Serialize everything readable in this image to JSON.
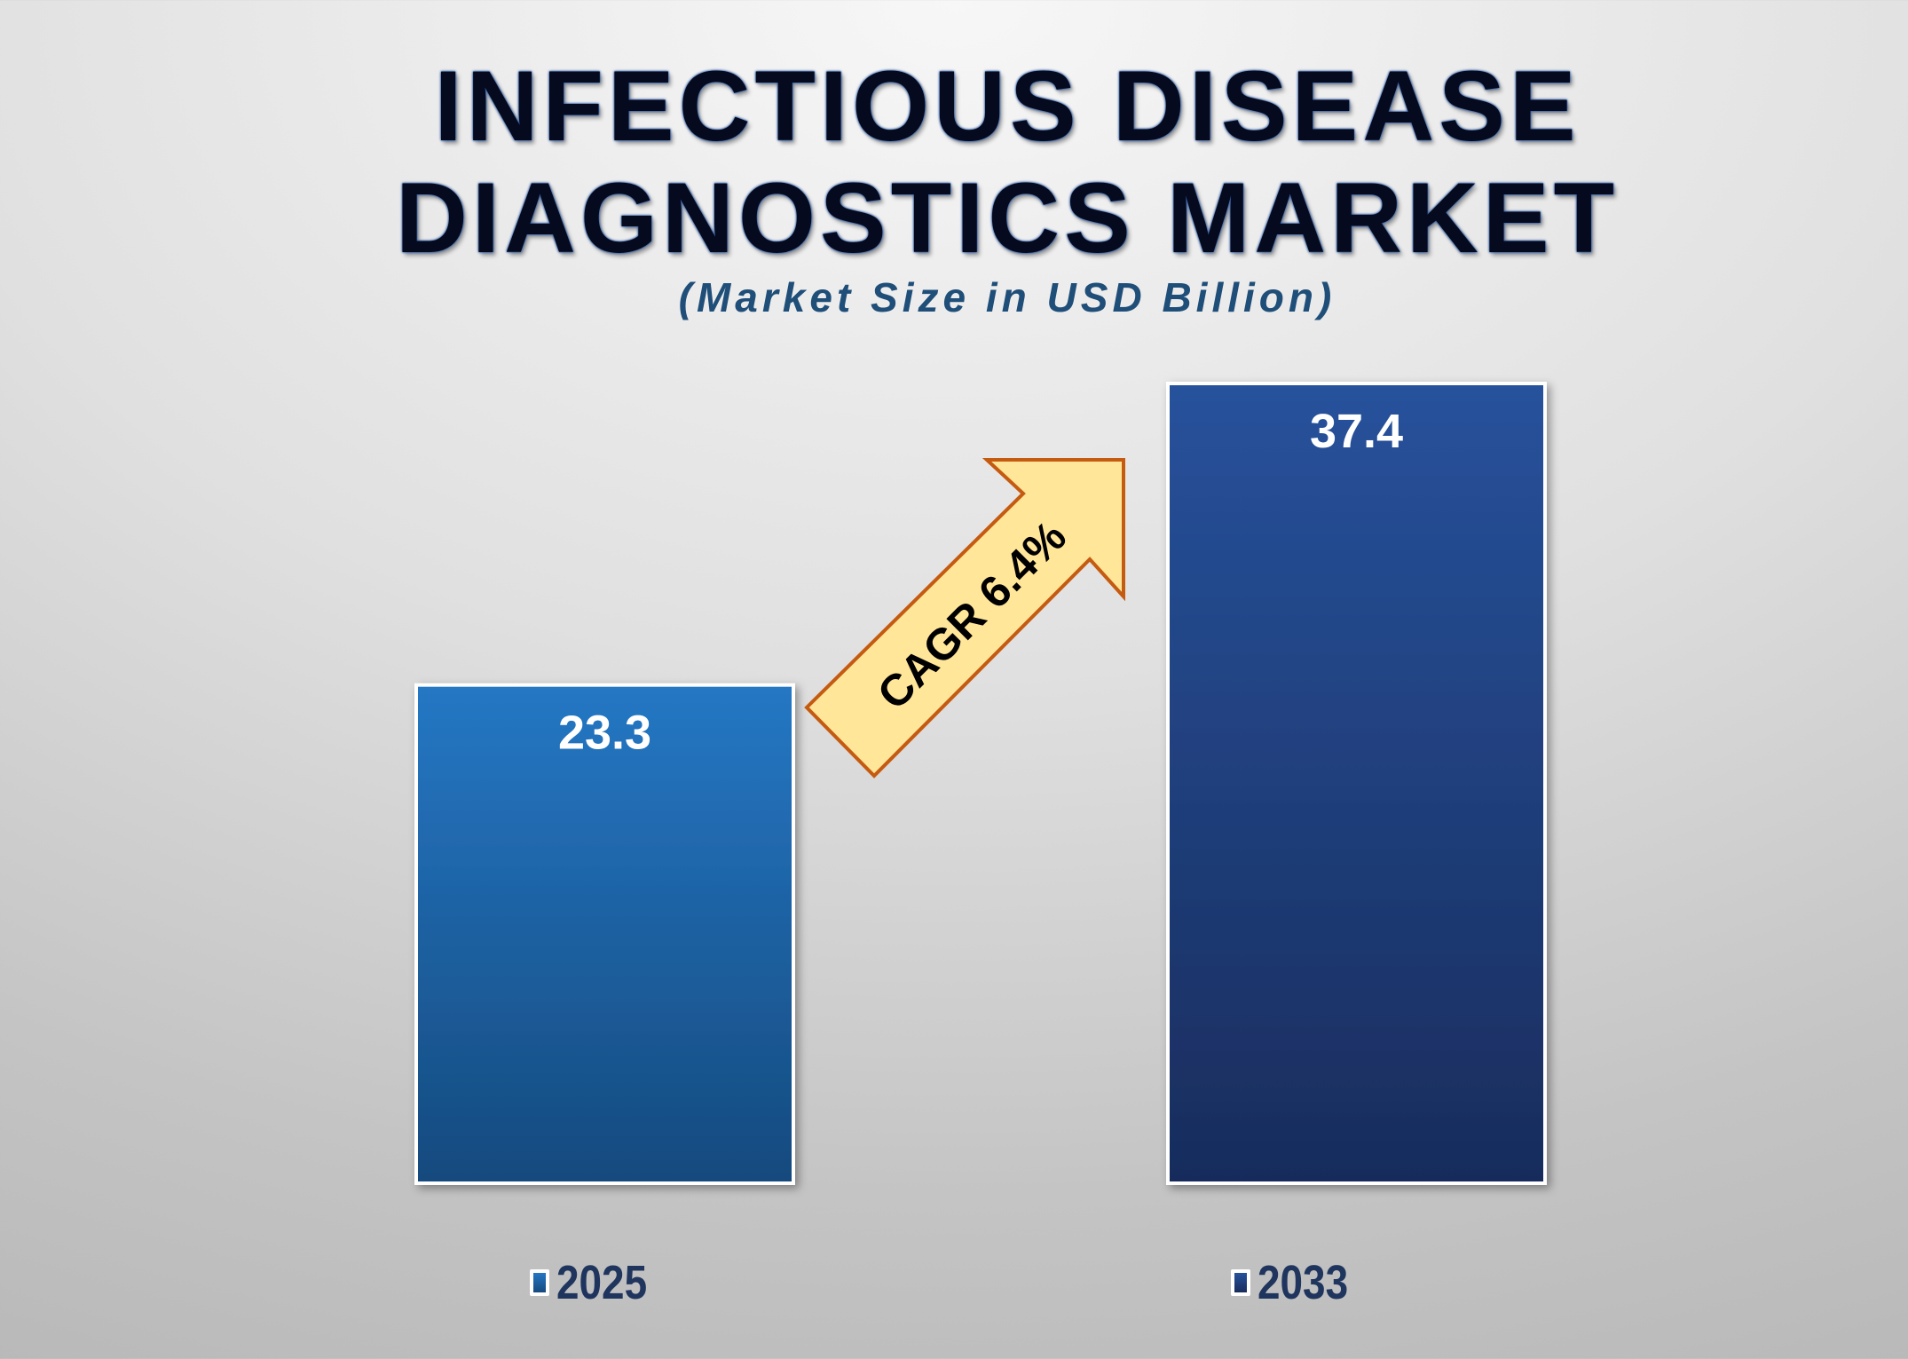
{
  "title_lines": [
    "INFECTIOUS DISEASE",
    "DIAGNOSTICS MARKET"
  ],
  "subtitle": "(Market Size in USD Billion)",
  "annotation": "CAGR 6.4%",
  "colors": {
    "bar_2025_top": "#2577c4",
    "bar_2025_bottom": "#154a7e",
    "bar_2033_top": "#27529c",
    "bar_2033_bottom": "#182c5c",
    "arrow_fill": "#ffe699",
    "arrow_stroke": "#c55a11",
    "title": "#050a1e",
    "subtitle": "#1f4e79"
  },
  "chart_data": {
    "type": "bar",
    "title": "INFECTIOUS DISEASE DIAGNOSTICS MARKET",
    "subtitle": "(Market Size in USD Billion)",
    "categories": [
      "2025",
      "2033"
    ],
    "values": [
      23.3,
      37.4
    ],
    "data_labels": [
      "23.3",
      "37.4"
    ],
    "ylim": [
      0,
      37.4
    ],
    "grid": false,
    "legend": "bottom",
    "annotation": "CAGR 6.4%"
  }
}
